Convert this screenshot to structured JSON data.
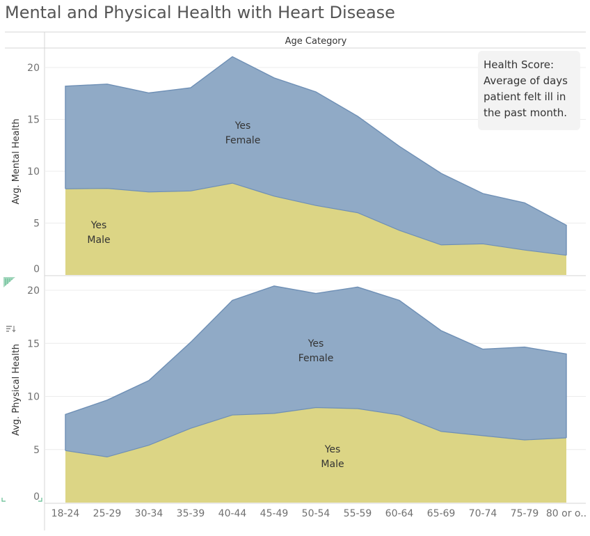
{
  "title": "Mental and Physical Health with Heart Disease",
  "annotation": "Health Score: Average of days patient felt ill in the past month.",
  "colors": {
    "female": "#90aac6",
    "female_line": "#6e8fb5",
    "male": "#dcd585",
    "male_line": "#b9b468"
  },
  "chart_data": [
    {
      "type": "area",
      "stacked": true,
      "xlabel": "Age Category",
      "ylabel": "Avg. Mental Health",
      "ylim": [
        0,
        22
      ],
      "yticks": [
        0,
        5,
        10,
        15,
        20
      ],
      "categories": [
        "18-24",
        "25-29",
        "30-34",
        "35-39",
        "40-44",
        "45-49",
        "50-54",
        "55-59",
        "60-64",
        "65-69",
        "70-74",
        "75-79",
        "80 or o.."
      ],
      "series": [
        {
          "name": "Male",
          "label": [
            "Yes",
            "Male"
          ],
          "values": [
            8.3,
            8.35,
            8.0,
            8.1,
            8.85,
            7.6,
            6.7,
            6.0,
            4.3,
            2.9,
            3.0,
            2.4,
            1.9
          ]
        },
        {
          "name": "Female",
          "label": [
            "Yes",
            "Female"
          ],
          "values": [
            9.9,
            10.05,
            9.55,
            9.95,
            12.2,
            11.4,
            10.95,
            9.3,
            8.1,
            6.9,
            4.85,
            4.55,
            2.9
          ]
        }
      ]
    },
    {
      "type": "area",
      "stacked": true,
      "xlabel": "Age Category",
      "ylabel": "Avg. Physical Health",
      "ylim": [
        0,
        21.5
      ],
      "yticks": [
        0,
        5,
        10,
        15,
        20
      ],
      "categories": [
        "18-24",
        "25-29",
        "30-34",
        "35-39",
        "40-44",
        "45-49",
        "50-54",
        "55-59",
        "60-64",
        "65-69",
        "70-74",
        "75-79",
        "80 or o.."
      ],
      "series": [
        {
          "name": "Male",
          "label": [
            "Yes",
            "Male"
          ],
          "values": [
            4.9,
            4.3,
            5.4,
            7.0,
            8.25,
            8.4,
            8.95,
            8.85,
            8.25,
            6.7,
            6.3,
            5.9,
            6.1
          ]
        },
        {
          "name": "Female",
          "label": [
            "Yes",
            "Female"
          ],
          "values": [
            3.4,
            5.35,
            6.1,
            8.1,
            10.8,
            12.0,
            10.75,
            11.45,
            10.8,
            9.5,
            8.15,
            8.75,
            7.9
          ]
        }
      ]
    }
  ]
}
